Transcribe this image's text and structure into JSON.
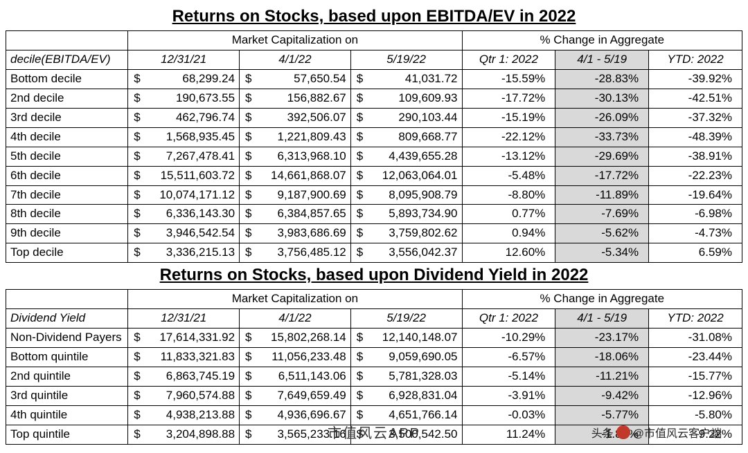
{
  "table1": {
    "title": "Returns on Stocks, based upon EBITDA/EV in 2022",
    "cornerLabel": "decile(EBITDA/EV)",
    "group_mc": "Market Capitalization on",
    "group_pc": "% Change in Aggregate",
    "colhdr": {
      "d1": "12/31/21",
      "d2": "4/1/22",
      "d3": "5/19/22",
      "p1": "Qtr 1: 2022",
      "p2": "4/1 - 5/19",
      "p3": "YTD: 2022"
    },
    "rows": [
      {
        "name": "Bottom decile",
        "m1": "68,299.24",
        "m2": "57,650.54",
        "m3": "41,031.72",
        "p1": "-15.59%",
        "p2": "-28.83%",
        "p3": "-39.92%"
      },
      {
        "name": "2nd decile",
        "m1": "190,673.55",
        "m2": "156,882.67",
        "m3": "109,609.93",
        "p1": "-17.72%",
        "p2": "-30.13%",
        "p3": "-42.51%"
      },
      {
        "name": "3rd decile",
        "m1": "462,796.74",
        "m2": "392,506.07",
        "m3": "290,103.44",
        "p1": "-15.19%",
        "p2": "-26.09%",
        "p3": "-37.32%"
      },
      {
        "name": "4th decile",
        "m1": "1,568,935.45",
        "m2": "1,221,809.43",
        "m3": "809,668.77",
        "p1": "-22.12%",
        "p2": "-33.73%",
        "p3": "-48.39%"
      },
      {
        "name": "5th decile",
        "m1": "7,267,478.41",
        "m2": "6,313,968.10",
        "m3": "4,439,655.28",
        "p1": "-13.12%",
        "p2": "-29.69%",
        "p3": "-38.91%"
      },
      {
        "name": "6th decile",
        "m1": "15,511,603.72",
        "m2": "14,661,868.07",
        "m3": "12,063,064.01",
        "p1": "-5.48%",
        "p2": "-17.72%",
        "p3": "-22.23%"
      },
      {
        "name": "7th decile",
        "m1": "10,074,171.12",
        "m2": "9,187,900.69",
        "m3": "8,095,908.79",
        "p1": "-8.80%",
        "p2": "-11.89%",
        "p3": "-19.64%"
      },
      {
        "name": "8th decile",
        "m1": "6,336,143.30",
        "m2": "6,384,857.65",
        "m3": "5,893,734.90",
        "p1": "0.77%",
        "p2": "-7.69%",
        "p3": "-6.98%"
      },
      {
        "name": "9th decile",
        "m1": "3,946,542.54",
        "m2": "3,983,686.69",
        "m3": "3,759,802.62",
        "p1": "0.94%",
        "p2": "-5.62%",
        "p3": "-4.73%"
      },
      {
        "name": "Top decile",
        "m1": "3,336,215.13",
        "m2": "3,756,485.12",
        "m3": "3,556,042.37",
        "p1": "12.60%",
        "p2": "-5.34%",
        "p3": "6.59%"
      }
    ]
  },
  "table2": {
    "title": "Returns on Stocks, based upon Dividend Yield in 2022",
    "cornerLabel": "Dividend Yield",
    "group_mc": "Market Capitalization on",
    "group_pc": "% Change in Aggregate",
    "colhdr": {
      "d1": "12/31/21",
      "d2": "4/1/22",
      "d3": "5/19/22",
      "p1": "Qtr 1: 2022",
      "p2": "4/1 - 5/19",
      "p3": "YTD: 2022"
    },
    "rows": [
      {
        "name": "Non-Dividend Payers",
        "m1": "17,614,331.92",
        "m2": "15,802,268.14",
        "m3": "12,140,148.07",
        "p1": "-10.29%",
        "p2": "-23.17%",
        "p3": "-31.08%"
      },
      {
        "name": "Bottom quintile",
        "m1": "11,833,321.83",
        "m2": "11,056,233.48",
        "m3": "9,059,690.05",
        "p1": "-6.57%",
        "p2": "-18.06%",
        "p3": "-23.44%"
      },
      {
        "name": "2nd quintile",
        "m1": "6,863,745.19",
        "m2": "6,511,143.06",
        "m3": "5,781,328.03",
        "p1": "-5.14%",
        "p2": "-11.21%",
        "p3": "-15.77%"
      },
      {
        "name": "3rd quintile",
        "m1": "7,960,574.88",
        "m2": "7,649,659.49",
        "m3": "6,928,831.04",
        "p1": "-3.91%",
        "p2": "-9.42%",
        "p3": "-12.96%"
      },
      {
        "name": "4th quintile",
        "m1": "4,938,213.88",
        "m2": "4,936,696.67",
        "m3": "4,651,766.14",
        "p1": "-0.03%",
        "p2": "-5.77%",
        "p3": "-5.80%"
      },
      {
        "name": "Top quintile",
        "m1": "3,204,898.88",
        "m2": "3,565,233.16",
        "m3": "3,500,542.50",
        "p1": "11.24%",
        "p2": "-1.82%",
        "p3": "9.22%"
      }
    ]
  },
  "watermark_center": "市值风云APP",
  "watermark_right_prefix": "头条",
  "watermark_right_handle": "@市值风云客户端",
  "colors": {
    "shade": "#d9d9d9",
    "border": "#000000",
    "text": "#000000",
    "background": "#ffffff"
  },
  "fontsize": {
    "title": 24,
    "cell": 17
  }
}
